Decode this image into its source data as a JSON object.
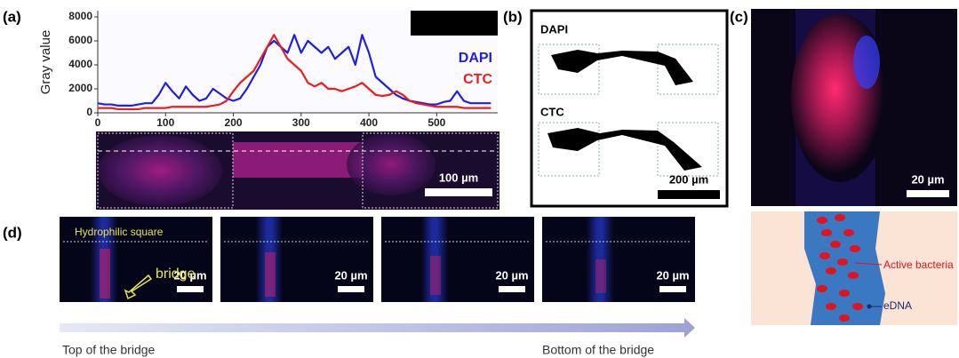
{
  "chart_data": {
    "type": "line",
    "ylabel": "Gray value",
    "x": [
      0,
      10,
      20,
      30,
      40,
      50,
      60,
      70,
      80,
      90,
      100,
      110,
      120,
      130,
      140,
      150,
      160,
      170,
      180,
      190,
      200,
      210,
      220,
      230,
      240,
      250,
      260,
      270,
      280,
      290,
      300,
      310,
      320,
      330,
      340,
      350,
      360,
      370,
      380,
      390,
      400,
      410,
      420,
      430,
      440,
      450,
      460,
      470,
      480,
      490,
      500,
      510,
      520,
      530,
      540,
      550,
      560,
      570,
      580
    ],
    "series": [
      {
        "name": "DAPI",
        "color": "#1f1fe0",
        "values": [
          800,
          700,
          700,
          600,
          600,
          600,
          700,
          800,
          800,
          1500,
          2500,
          1800,
          1200,
          2200,
          1500,
          1000,
          1200,
          2000,
          1600,
          1200,
          1000,
          1200,
          2000,
          3000,
          4000,
          5500,
          6000,
          5500,
          5000,
          6500,
          5000,
          6000,
          5500,
          5000,
          5500,
          4500,
          5000,
          5500,
          4000,
          6500,
          5000,
          3000,
          2500,
          2000,
          1500,
          1200,
          1000,
          900,
          800,
          700,
          700,
          900,
          1000,
          1800,
          1000,
          800,
          800,
          800,
          800
        ]
      },
      {
        "name": "CTC",
        "color": "#ee1c1c",
        "values": [
          400,
          400,
          400,
          300,
          300,
          300,
          300,
          400,
          400,
          400,
          400,
          500,
          500,
          500,
          500,
          500,
          500,
          600,
          700,
          1000,
          1800,
          2500,
          3000,
          3500,
          4500,
          5500,
          6500,
          5500,
          4500,
          4000,
          3500,
          2500,
          2200,
          2500,
          2000,
          2000,
          1800,
          2000,
          2200,
          2500,
          2000,
          1500,
          1400,
          1500,
          1800,
          1500,
          1000,
          800,
          700,
          600,
          500,
          500,
          500,
          500,
          400,
          400,
          400,
          400,
          400
        ]
      }
    ],
    "xlim": [
      0,
      590
    ],
    "xticks": [
      0,
      100,
      200,
      300,
      400,
      500
    ],
    "ylim": [
      0,
      8000
    ],
    "yticks": [
      0,
      2000,
      4000,
      6000,
      8000
    ],
    "grid": false,
    "legend": "right"
  },
  "panel_labels": [
    "(a)",
    "(b)",
    "(c)",
    "(d)"
  ],
  "panel_a": {
    "scale_bar": "100 µm"
  },
  "panel_b": {
    "labels": [
      "DAPI",
      "CTC"
    ],
    "scale_bar": "200 µm"
  },
  "panel_c": {
    "scale_bar": "20 µm",
    "diagram_labels": [
      "Active bacteria",
      "eDNA"
    ]
  },
  "panel_d": {
    "region_label": "Hydrophilic square",
    "bridge_label": "bridge",
    "scale_bars": [
      "20 µm",
      "20 µm",
      "20 µm",
      "20 µm"
    ],
    "axis_start": "Top of the bridge",
    "axis_end": "Bottom of the bridge"
  }
}
